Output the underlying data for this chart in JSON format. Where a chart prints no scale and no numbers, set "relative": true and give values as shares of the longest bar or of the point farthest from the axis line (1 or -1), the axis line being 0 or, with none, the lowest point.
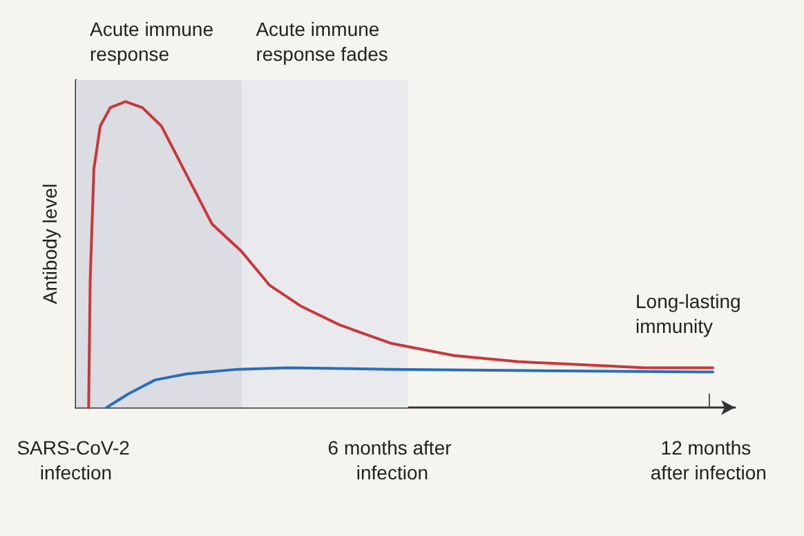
{
  "chart_data": {
    "type": "line",
    "relative": true,
    "ylabel": "Antibody level",
    "xlim": [
      0,
      12.5
    ],
    "xticks": [
      {
        "value": 0,
        "label": "SARS-CoV-2 infection"
      },
      {
        "value": 6,
        "label": "6 months after infection"
      },
      {
        "value": 12,
        "label": "12 months after infection"
      }
    ],
    "grid": false,
    "marker": "none",
    "line_style": "solid",
    "bands": [
      {
        "axis": "x",
        "from": 0,
        "to": 3.15,
        "label": "Acute immune response",
        "color": "#dcdde3"
      },
      {
        "axis": "x",
        "from": 3.15,
        "to": 6.3,
        "label": "Acute immune response fades",
        "color": "#e9eaee"
      }
    ],
    "annotations": [
      "Long-lasting immunity"
    ],
    "series": [
      {
        "color": "#c8373a",
        "x": [
          0.24,
          0.27,
          0.34,
          0.46,
          0.65,
          0.94,
          1.26,
          1.62,
          2.1,
          2.58,
          3.14,
          3.67,
          4.28,
          5.0,
          5.97,
          7.17,
          8.38,
          9.6,
          10.8,
          12.08
        ],
        "values": [
          0,
          0.42,
          0.78,
          0.92,
          0.98,
          1,
          0.98,
          0.92,
          0.76,
          0.6,
          0.51,
          0.4,
          0.33,
          0.27,
          0.21,
          0.17,
          0.15,
          0.14,
          0.13,
          0.13
        ]
      },
      {
        "color": "#2a6ebb",
        "x": [
          0.58,
          1.0,
          1.5,
          2.1,
          3.07,
          4.03,
          5.97,
          8.86,
          12.08
        ],
        "values": [
          0,
          0.045,
          0.09,
          0.11,
          0.125,
          0.13,
          0.125,
          0.12,
          0.116
        ]
      }
    ]
  }
}
